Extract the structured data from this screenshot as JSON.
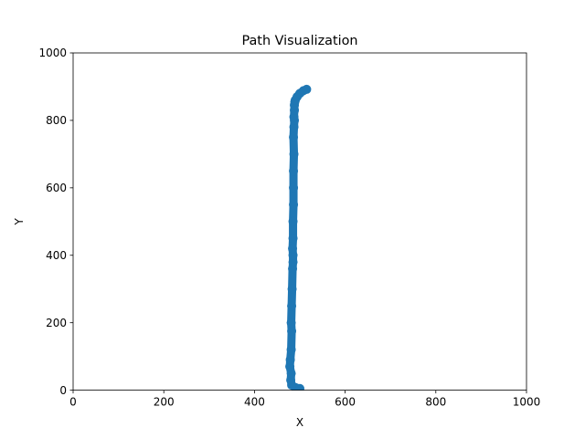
{
  "chart_data": {
    "type": "line",
    "title": "Path Visualization",
    "xlabel": "X",
    "ylabel": "Y",
    "xlim": [
      0,
      1000
    ],
    "ylim": [
      0,
      1000
    ],
    "xticks": [
      0,
      200,
      400,
      600,
      800,
      1000
    ],
    "yticks": [
      0,
      200,
      400,
      600,
      800,
      1000
    ],
    "grid": false,
    "legend": "none",
    "series": [
      {
        "color": "#1f77b4",
        "marker": "circle",
        "x": [
          500,
          490,
          482,
          480,
          481,
          478,
          479,
          481,
          482,
          481,
          482,
          483,
          484,
          485,
          485,
          484,
          485,
          485,
          486,
          486,
          486,
          487,
          486,
          487,
          488,
          487,
          488,
          488,
          489,
          490,
          494,
          500,
          508,
          515
        ],
        "y": [
          5,
          8,
          15,
          30,
          50,
          70,
          90,
          120,
          175,
          200,
          250,
          300,
          360,
          380,
          400,
          420,
          450,
          500,
          550,
          600,
          650,
          700,
          750,
          780,
          800,
          810,
          830,
          845,
          855,
          860,
          870,
          880,
          888,
          892
        ]
      }
    ]
  }
}
